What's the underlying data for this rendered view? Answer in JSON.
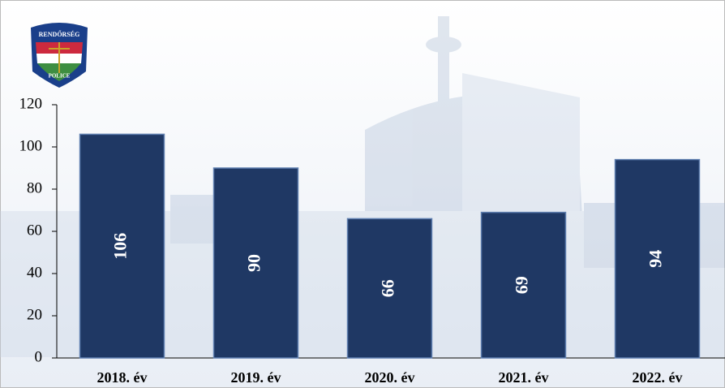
{
  "logo": {
    "top": "RENDŐRSÉG",
    "bottom": "POLICE"
  },
  "chart_data": {
    "type": "bar",
    "categories": [
      "2018. év",
      "2019. év",
      "2020. év",
      "2021. év",
      "2022. év"
    ],
    "values": [
      106,
      90,
      66,
      69,
      94
    ],
    "color": "#1f3864",
    "ylim": [
      0,
      120
    ],
    "yticks": [
      0,
      20,
      40,
      60,
      80,
      100,
      120
    ],
    "grid": false
  }
}
